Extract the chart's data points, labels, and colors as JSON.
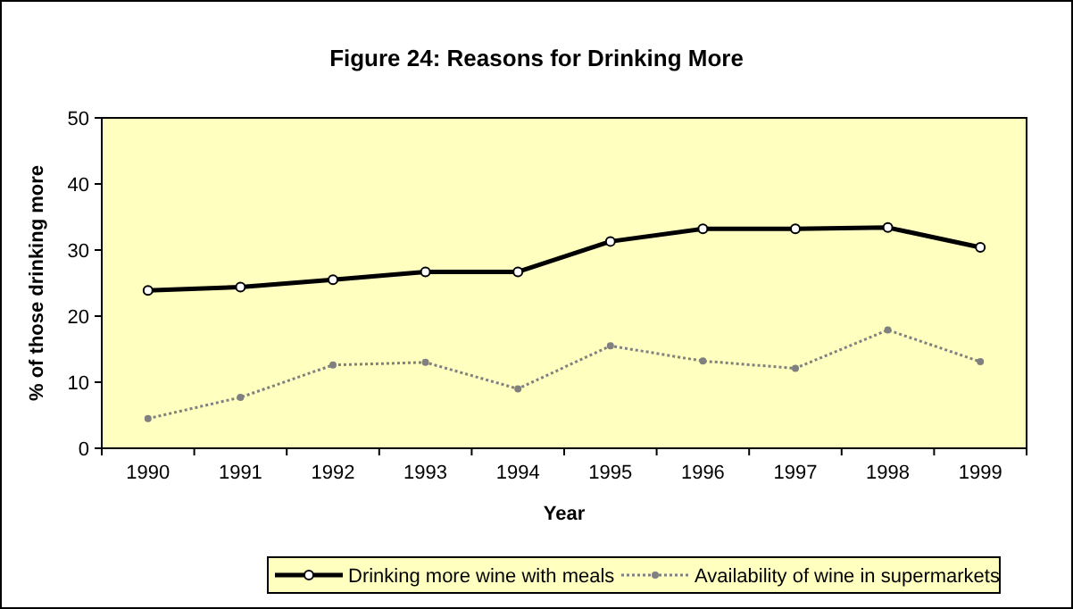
{
  "chart_data": {
    "type": "line",
    "title": "Figure 24: Reasons for Drinking More",
    "xlabel": "Year",
    "ylabel": "% of those drinking more",
    "categories": [
      "1990",
      "1991",
      "1992",
      "1993",
      "1994",
      "1995",
      "1996",
      "1997",
      "1998",
      "1999"
    ],
    "series": [
      {
        "name": "Drinking more wine with meals",
        "color": "#000000",
        "values": [
          23.9,
          24.4,
          25.5,
          26.7,
          26.7,
          31.3,
          33.2,
          33.2,
          33.4,
          30.4
        ]
      },
      {
        "name": "Availability of wine in supermarkets",
        "color": "#808080",
        "line_style": "dotted",
        "values": [
          4.5,
          7.7,
          12.6,
          13.0,
          9.0,
          15.5,
          13.2,
          12.1,
          17.9,
          13.1
        ]
      }
    ],
    "ylim": [
      0,
      50
    ],
    "yticks": [
      0,
      10,
      20,
      30,
      40,
      50
    ],
    "grid": false,
    "legend": "bottom",
    "marker": "circle",
    "line_style": "solid"
  }
}
